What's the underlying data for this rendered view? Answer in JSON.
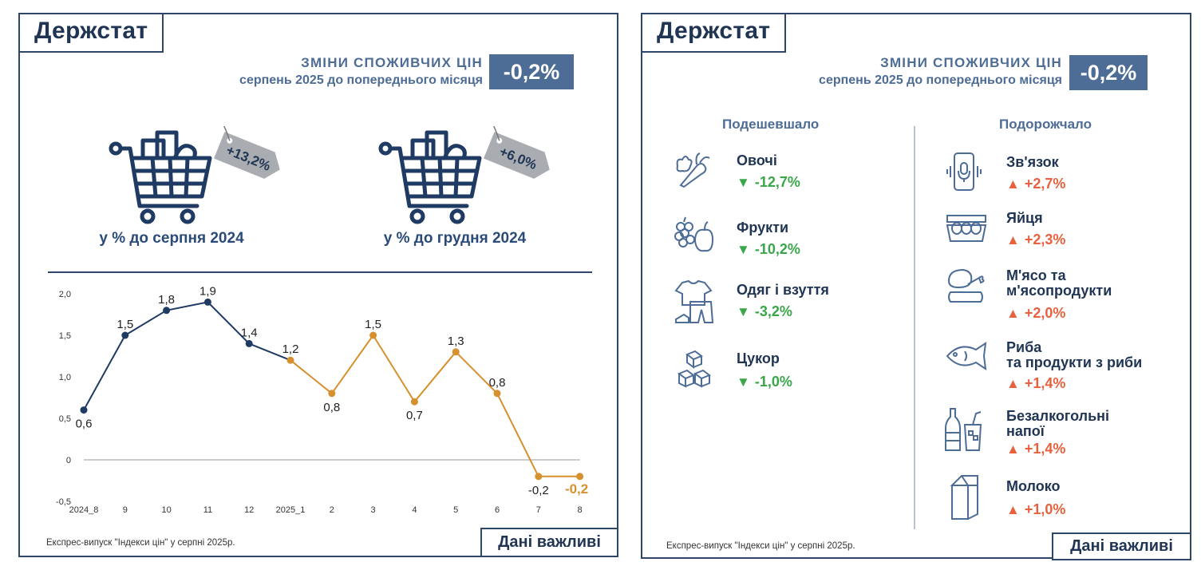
{
  "left": {
    "logo": "Держстат",
    "header_title": "ЗМІНИ СПОЖИВЧИХ ЦІН",
    "header_subtitle": "серпень 2025 до попереднього місяця",
    "badge": "-0,2%",
    "cart_left_tag": "+13,2%",
    "cart_left_caption": "у % до серпня 2024",
    "cart_right_tag": "+6,0%",
    "cart_right_caption": "у % до грудня 2024",
    "footer_note": "Експрес-випуск \"Індекси цін\" у серпні 2025р.",
    "button": "Дані важливі"
  },
  "chart_data": {
    "type": "line",
    "categories": [
      "2024_8",
      "9",
      "10",
      "11",
      "12",
      "2025_1",
      "2",
      "3",
      "4",
      "5",
      "6",
      "7",
      "8"
    ],
    "values": [
      0.6,
      1.5,
      1.8,
      1.9,
      1.4,
      1.2,
      0.8,
      1.5,
      0.7,
      1.3,
      0.8,
      -0.2,
      -0.2
    ],
    "value_labels": [
      "0,6",
      "1,5",
      "1,8",
      "1,9",
      "1,4",
      "1,2",
      "0,8",
      "1,5",
      "0,7",
      "1,3",
      "0,8",
      "-0,2",
      "-0,2"
    ],
    "yticks": [
      "-0,5",
      "0",
      "0,5",
      "1,0",
      "1,5",
      "2,0"
    ],
    "ytick_values": [
      -0.5,
      0,
      0.5,
      1.0,
      1.5,
      2.0
    ],
    "ylim": [
      -0.5,
      2.0
    ],
    "colors": {
      "2024": "#1f3a63",
      "2025": "#d6902e"
    },
    "title": "",
    "xlabel": "",
    "ylabel": ""
  },
  "right": {
    "logo": "Держстат",
    "header_title": "ЗМІНИ СПОЖИВЧИХ ЦІН",
    "header_subtitle": "серпень 2025 до попереднього місяця",
    "badge": "-0,2%",
    "col_cheaper": "Подешевшало",
    "col_pricier": "Подорожчало",
    "cheaper": [
      {
        "icon": "vegetables-icon",
        "name": "Овочі",
        "value": "-12,7%"
      },
      {
        "icon": "fruits-icon",
        "name": "Фрукти",
        "value": "-10,2%"
      },
      {
        "icon": "clothes-icon",
        "name": "Одяг і взуття",
        "value": "-3,2%"
      },
      {
        "icon": "sugar-icon",
        "name": "Цукор",
        "value": "-1,0%"
      }
    ],
    "pricier": [
      {
        "icon": "phone-icon",
        "name": "Зв'язок",
        "value": "+2,7%"
      },
      {
        "icon": "eggs-icon",
        "name": "Яйця",
        "value": "+2,3%"
      },
      {
        "icon": "meat-icon",
        "name": "М'ясо та",
        "name2": "м'ясопродукти",
        "value": "+2,0%"
      },
      {
        "icon": "fish-icon",
        "name": "Риба",
        "name2": "та продукти з риби",
        "value": "+1,4%"
      },
      {
        "icon": "drinks-icon",
        "name": "Безалкогольні",
        "name2": "напої",
        "value": "+1,4%"
      },
      {
        "icon": "milk-icon",
        "name": "Молоко",
        "value": "+1,0%"
      }
    ],
    "footer_note": "Експрес-випуск \"Індекси цін\" у серпні 2025р.",
    "button": "Дані важливі"
  },
  "triangle_down": "▼",
  "triangle_up": "▲"
}
